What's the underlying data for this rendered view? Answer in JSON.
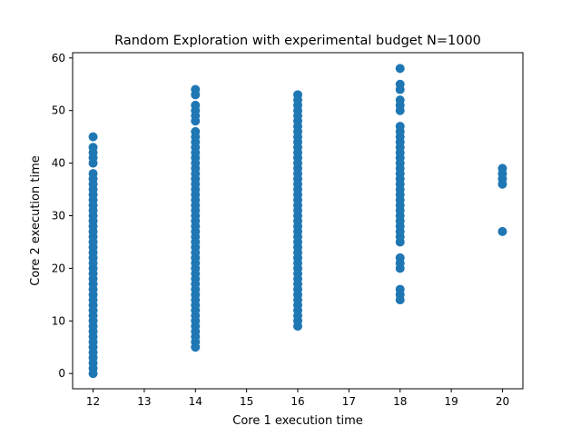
{
  "chart_data": {
    "type": "scatter",
    "title": "Random Exploration with experimental budget N=1000",
    "xlabel": "Core 1 execution time",
    "ylabel": "Core 2 execution time",
    "xlim": [
      11.6,
      20.4
    ],
    "ylim": [
      -2.9,
      61
    ],
    "xticks": [
      12,
      13,
      14,
      15,
      16,
      17,
      18,
      19,
      20
    ],
    "yticks": [
      0,
      10,
      20,
      30,
      40,
      50,
      60
    ],
    "grid": false,
    "legend": "none",
    "marker_color": "#1f77b4",
    "series": [
      {
        "points": [
          {
            "x": 12,
            "y_values": [
              0,
              1,
              2,
              3,
              4,
              5,
              6,
              7,
              8,
              9,
              10,
              11,
              12,
              13,
              14,
              15,
              16,
              17,
              18,
              19,
              20,
              21,
              22,
              23,
              24,
              25,
              26,
              27,
              28,
              29,
              30,
              31,
              32,
              33,
              34,
              35,
              36,
              37,
              38,
              40,
              41,
              42,
              43,
              45
            ]
          },
          {
            "x": 14,
            "y_values": [
              5,
              6,
              7,
              8,
              9,
              10,
              11,
              12,
              13,
              14,
              15,
              16,
              17,
              18,
              19,
              20,
              21,
              22,
              23,
              24,
              25,
              26,
              27,
              28,
              29,
              30,
              31,
              32,
              33,
              34,
              35,
              36,
              37,
              38,
              39,
              40,
              41,
              42,
              43,
              44,
              45,
              46,
              48,
              49,
              50,
              51,
              53,
              54
            ]
          },
          {
            "x": 16,
            "y_values": [
              9,
              10,
              11,
              12,
              13,
              14,
              15,
              16,
              17,
              18,
              19,
              20,
              21,
              22,
              23,
              24,
              25,
              26,
              27,
              28,
              29,
              30,
              31,
              32,
              33,
              34,
              35,
              36,
              37,
              38,
              39,
              40,
              41,
              42,
              43,
              44,
              45,
              46,
              47,
              48,
              49,
              50,
              51,
              52,
              53
            ]
          },
          {
            "x": 18,
            "y_values": [
              14,
              15,
              16,
              20,
              21,
              22,
              25,
              26,
              27,
              28,
              29,
              30,
              31,
              32,
              33,
              34,
              35,
              36,
              37,
              38,
              39,
              40,
              41,
              42,
              43,
              44,
              45,
              46,
              47,
              50,
              51,
              52,
              54,
              55,
              58
            ]
          },
          {
            "x": 20,
            "y_values": [
              27,
              36,
              37,
              38,
              39
            ]
          }
        ]
      }
    ]
  }
}
